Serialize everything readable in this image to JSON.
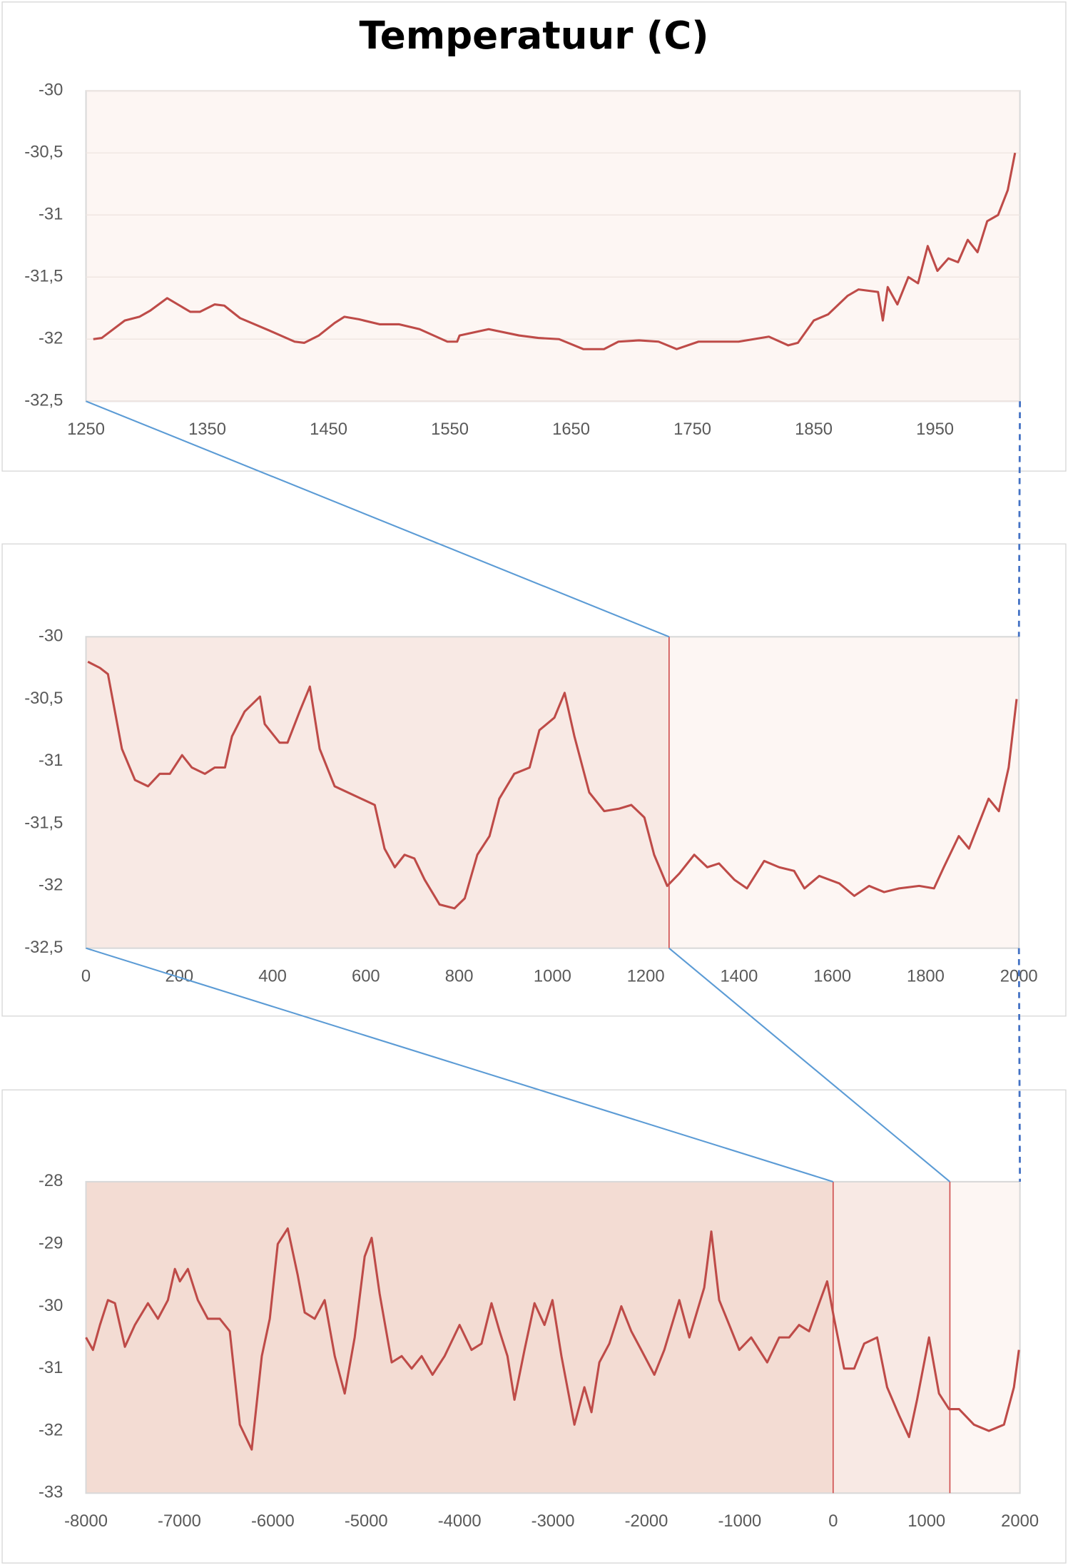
{
  "title": "Temperatuur (C)",
  "chart_data": [
    {
      "type": "line",
      "color": "#be4b48",
      "x": [
        1256,
        1263,
        1282,
        1294,
        1303,
        1317,
        1336,
        1344,
        1356,
        1364,
        1377,
        1401,
        1422,
        1430,
        1442,
        1455,
        1463,
        1475,
        1492,
        1508,
        1525,
        1548,
        1556,
        1558,
        1582,
        1607,
        1623,
        1640,
        1660,
        1677,
        1689,
        1706,
        1722,
        1737,
        1755,
        1788,
        1813,
        1829,
        1837,
        1850,
        1862,
        1878,
        1887,
        1903,
        1907,
        1911,
        1919,
        1928,
        1936,
        1944,
        1952,
        1961,
        1969,
        1977,
        1985,
        1993,
        2002,
        2010,
        2016
      ],
      "values": [
        -32.0,
        -31.99,
        -31.85,
        -31.82,
        -31.77,
        -31.67,
        -31.78,
        -31.78,
        -31.72,
        -31.73,
        -31.83,
        -31.93,
        -32.02,
        -32.03,
        -31.97,
        -31.87,
        -31.82,
        -31.84,
        -31.88,
        -31.88,
        -31.92,
        -32.02,
        -32.02,
        -31.97,
        -31.92,
        -31.97,
        -31.99,
        -32.0,
        -32.08,
        -32.08,
        -32.02,
        -32.01,
        -32.02,
        -32.08,
        -32.02,
        -32.02,
        -31.98,
        -32.05,
        -32.03,
        -31.85,
        -31.8,
        -31.65,
        -31.6,
        -31.62,
        -31.85,
        -31.58,
        -31.72,
        -31.5,
        -31.55,
        -31.25,
        -31.45,
        -31.35,
        -31.38,
        -31.2,
        -31.3,
        -31.05,
        -31.0,
        -30.8,
        -30.5
      ],
      "xlim": [
        1250,
        2020
      ],
      "ylim": [
        -32.5,
        -30
      ],
      "xticks": [
        1250,
        1350,
        1450,
        1550,
        1650,
        1750,
        1850,
        1950
      ],
      "yticks": [
        -30,
        {
          "value": -30.5,
          "label": "-30,5"
        },
        -31,
        {
          "value": -31.5,
          "label": "-31,5"
        },
        -32,
        {
          "value": -32.5,
          "label": "-32,5"
        }
      ],
      "grid": true
    },
    {
      "type": "line",
      "color": "#be4b48",
      "x": [
        4,
        30,
        47,
        62,
        77,
        105,
        133,
        158,
        180,
        206,
        227,
        255,
        276,
        298,
        313,
        340,
        373,
        383,
        415,
        432,
        458,
        480,
        501,
        533,
        619,
        640,
        662,
        683,
        704,
        726,
        758,
        790,
        812,
        839,
        865,
        886,
        918,
        951,
        972,
        1004,
        1026,
        1047,
        1079,
        1111,
        1143,
        1169,
        1197,
        1218,
        1246,
        1272,
        1304,
        1332,
        1357,
        1390,
        1417,
        1454,
        1486,
        1518,
        1540,
        1572,
        1615,
        1647,
        1679,
        1711,
        1743,
        1786,
        1818,
        1839,
        1871,
        1893,
        1914,
        1935,
        1957,
        1978,
        1995
      ],
      "values": [
        -30.2,
        -30.25,
        -30.3,
        -30.6,
        -30.9,
        -31.15,
        -31.2,
        -31.1,
        -31.1,
        -30.95,
        -31.05,
        -31.1,
        -31.05,
        -31.05,
        -30.8,
        -30.6,
        -30.48,
        -30.7,
        -30.85,
        -30.85,
        -30.6,
        -30.4,
        -30.9,
        -31.2,
        -31.35,
        -31.7,
        -31.85,
        -31.75,
        -31.78,
        -31.95,
        -32.15,
        -32.18,
        -32.1,
        -31.75,
        -31.6,
        -31.3,
        -31.1,
        -31.05,
        -30.75,
        -30.65,
        -30.45,
        -30.8,
        -31.25,
        -31.4,
        -31.38,
        -31.35,
        -31.45,
        -31.75,
        -32.0,
        -31.9,
        -31.75,
        -31.85,
        -31.82,
        -31.95,
        -32.02,
        -31.8,
        -31.85,
        -31.88,
        -32.02,
        -31.92,
        -31.98,
        -32.08,
        -32.0,
        -32.05,
        -32.02,
        -32.0,
        -32.02,
        -31.85,
        -31.6,
        -31.7,
        -31.5,
        -31.3,
        -31.4,
        -31.05,
        -30.5
      ],
      "xlim": [
        0,
        2000
      ],
      "ylim": [
        -32.5,
        -30
      ],
      "xticks": [
        0,
        200,
        400,
        600,
        800,
        1000,
        1200,
        1400,
        1600,
        1800,
        2000
      ],
      "yticks": [
        -30,
        {
          "value": -30.5,
          "label": "-30,5"
        },
        -31,
        {
          "value": -31.5,
          "label": "-31,5"
        },
        -32,
        {
          "value": -32.5,
          "label": "-32,5"
        }
      ],
      "grid": false
    },
    {
      "type": "line",
      "color": "#be4b48",
      "x": [
        -8000,
        -7925,
        -7850,
        -7765,
        -7690,
        -7583,
        -7476,
        -7337,
        -7230,
        -7123,
        -7048,
        -6995,
        -6909,
        -6802,
        -6695,
        -6567,
        -6460,
        -6353,
        -6225,
        -6118,
        -6032,
        -5947,
        -5840,
        -5733,
        -5658,
        -5551,
        -5444,
        -5337,
        -5230,
        -5123,
        -5016,
        -4941,
        -4856,
        -4727,
        -4620,
        -4513,
        -4406,
        -4289,
        -4160,
        -4000,
        -3872,
        -3765,
        -3658,
        -3572,
        -3487,
        -3412,
        -3305,
        -3198,
        -3091,
        -3005,
        -2909,
        -2770,
        -2663,
        -2588,
        -2503,
        -2396,
        -2268,
        -2161,
        -2054,
        -1915,
        -1808,
        -1647,
        -1540,
        -1380,
        -1305,
        -1220,
        -1112,
        -1005,
        -877,
        -706,
        -578,
        -471,
        -364,
        -257,
        -150,
        -64,
        11,
        118,
        225,
        332,
        471,
        578,
        706,
        813,
        899,
        1027,
        1134,
        1241,
        1348,
        1508,
        1668,
        1829,
        1936,
        1989
      ],
      "values": [
        -30.5,
        -30.7,
        -30.3,
        -29.9,
        -29.95,
        -30.65,
        -30.3,
        -29.95,
        -30.2,
        -29.9,
        -29.4,
        -29.6,
        -29.4,
        -29.9,
        -30.2,
        -30.2,
        -30.4,
        -31.9,
        -32.3,
        -30.8,
        -30.2,
        -29.0,
        -28.75,
        -29.5,
        -30.1,
        -30.2,
        -29.9,
        -30.8,
        -31.4,
        -30.5,
        -29.2,
        -28.9,
        -29.8,
        -30.9,
        -30.8,
        -31.0,
        -30.8,
        -31.1,
        -30.8,
        -30.3,
        -30.7,
        -30.6,
        -29.95,
        -30.4,
        -30.8,
        -31.5,
        -30.7,
        -29.95,
        -30.3,
        -29.9,
        -30.8,
        -31.9,
        -31.3,
        -31.7,
        -30.9,
        -30.6,
        -30.0,
        -30.4,
        -30.7,
        -31.1,
        -30.7,
        -29.9,
        -30.5,
        -29.7,
        -28.8,
        -29.9,
        -30.3,
        -30.7,
        -30.5,
        -30.9,
        -30.5,
        -30.5,
        -30.3,
        -30.4,
        -29.95,
        -29.6,
        -30.2,
        -31.0,
        -31.0,
        -30.6,
        -30.5,
        -31.3,
        -31.75,
        -32.1,
        -31.5,
        -30.5,
        -31.4,
        -31.65,
        -31.65,
        -31.9,
        -32.0,
        -31.9,
        -31.3,
        -30.7
      ],
      "xlim": [
        -8000,
        2000
      ],
      "ylim": [
        -33,
        -28
      ],
      "xticks": [
        -8000,
        -7000,
        -6000,
        -5000,
        -4000,
        -3000,
        -2000,
        -1000,
        0,
        1000,
        2000
      ],
      "yticks": [
        -28,
        -29,
        -30,
        -31,
        -32,
        -33
      ],
      "grid": false
    }
  ]
}
